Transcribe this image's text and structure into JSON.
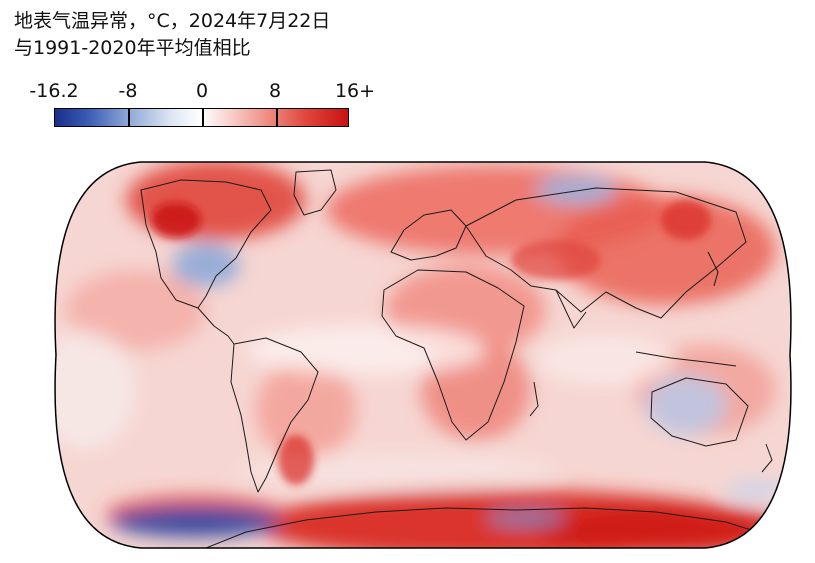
{
  "title": {
    "line1": "地表气温异常，°C，2024年7月22日",
    "line2": "与1991-2020年平均值相比"
  },
  "legend": {
    "ticks": [
      "-16.2",
      "-8",
      "0",
      "8",
      "16+"
    ],
    "tick_fractions": [
      0,
      0.25,
      0.5,
      0.75,
      1.0
    ],
    "colors": {
      "min": "#1a2f8c",
      "neutral": "#ffffff",
      "max": "#c81212"
    }
  }
}
